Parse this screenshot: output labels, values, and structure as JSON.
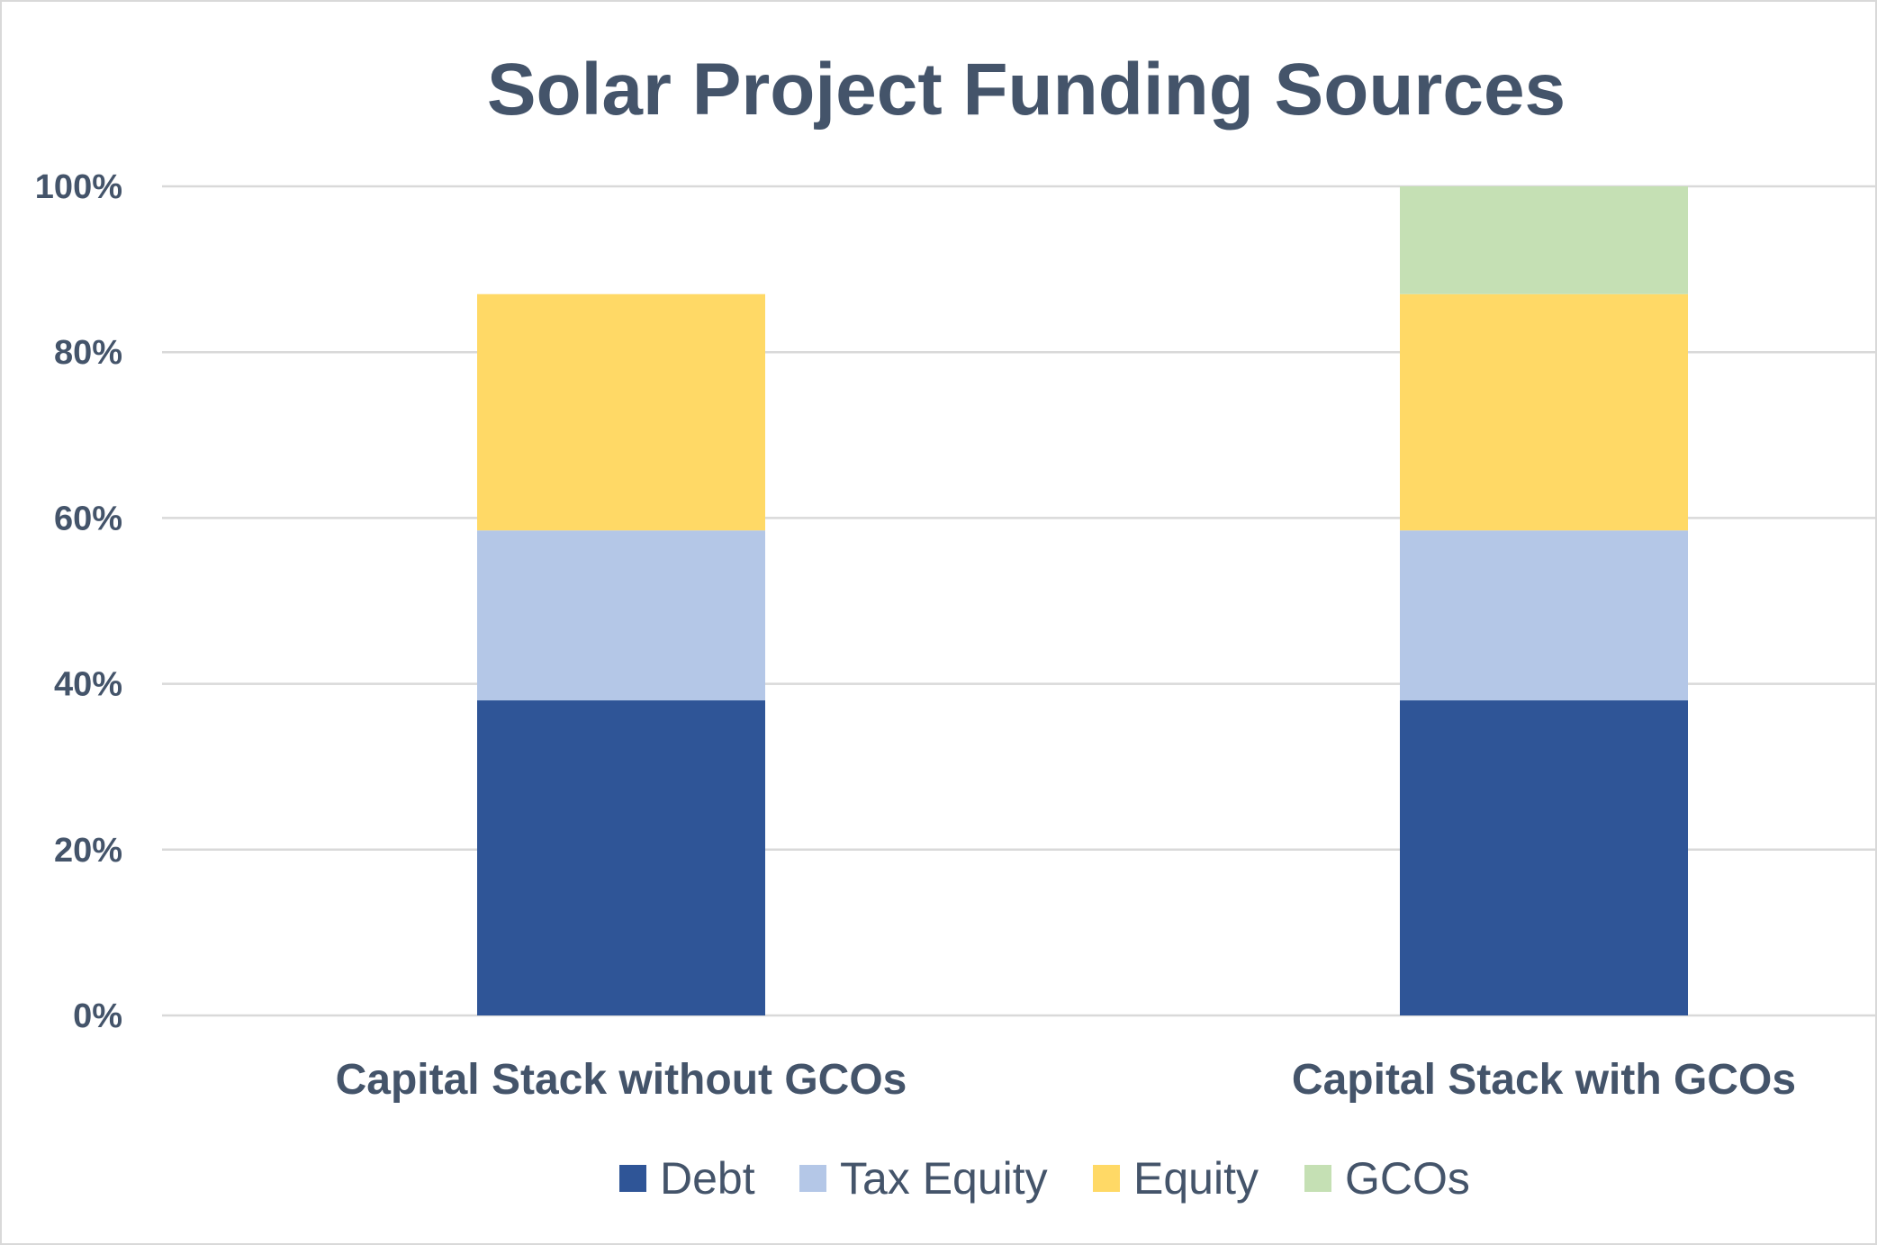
{
  "chart_data": {
    "type": "bar",
    "stacked": true,
    "title": "Solar Project Funding Sources",
    "xlabel": "",
    "ylabel": "",
    "ylim": [
      0,
      1
    ],
    "yticks": [
      {
        "value": 0,
        "label": "0%"
      },
      {
        "value": 0.2,
        "label": "20%"
      },
      {
        "value": 0.4,
        "label": "40%"
      },
      {
        "value": 0.6,
        "label": "60%"
      },
      {
        "value": 0.8,
        "label": "80%"
      },
      {
        "value": 1.0,
        "label": "100%"
      }
    ],
    "grid": true,
    "legend_position": "bottom",
    "categories": [
      "Capital Stack without GCOs",
      "Capital Stack with GCOs"
    ],
    "series": [
      {
        "name": "Debt",
        "color": "#2f5597",
        "values": [
          0.38,
          0.38
        ]
      },
      {
        "name": "Tax Equity",
        "color": "#b4c7e7",
        "values": [
          0.205,
          0.205
        ]
      },
      {
        "name": "Equity",
        "color": "#ffd966",
        "values": [
          0.285,
          0.285
        ]
      },
      {
        "name": "GCOs",
        "color": "#c5e0b4",
        "values": [
          0,
          0.13
        ]
      }
    ]
  }
}
